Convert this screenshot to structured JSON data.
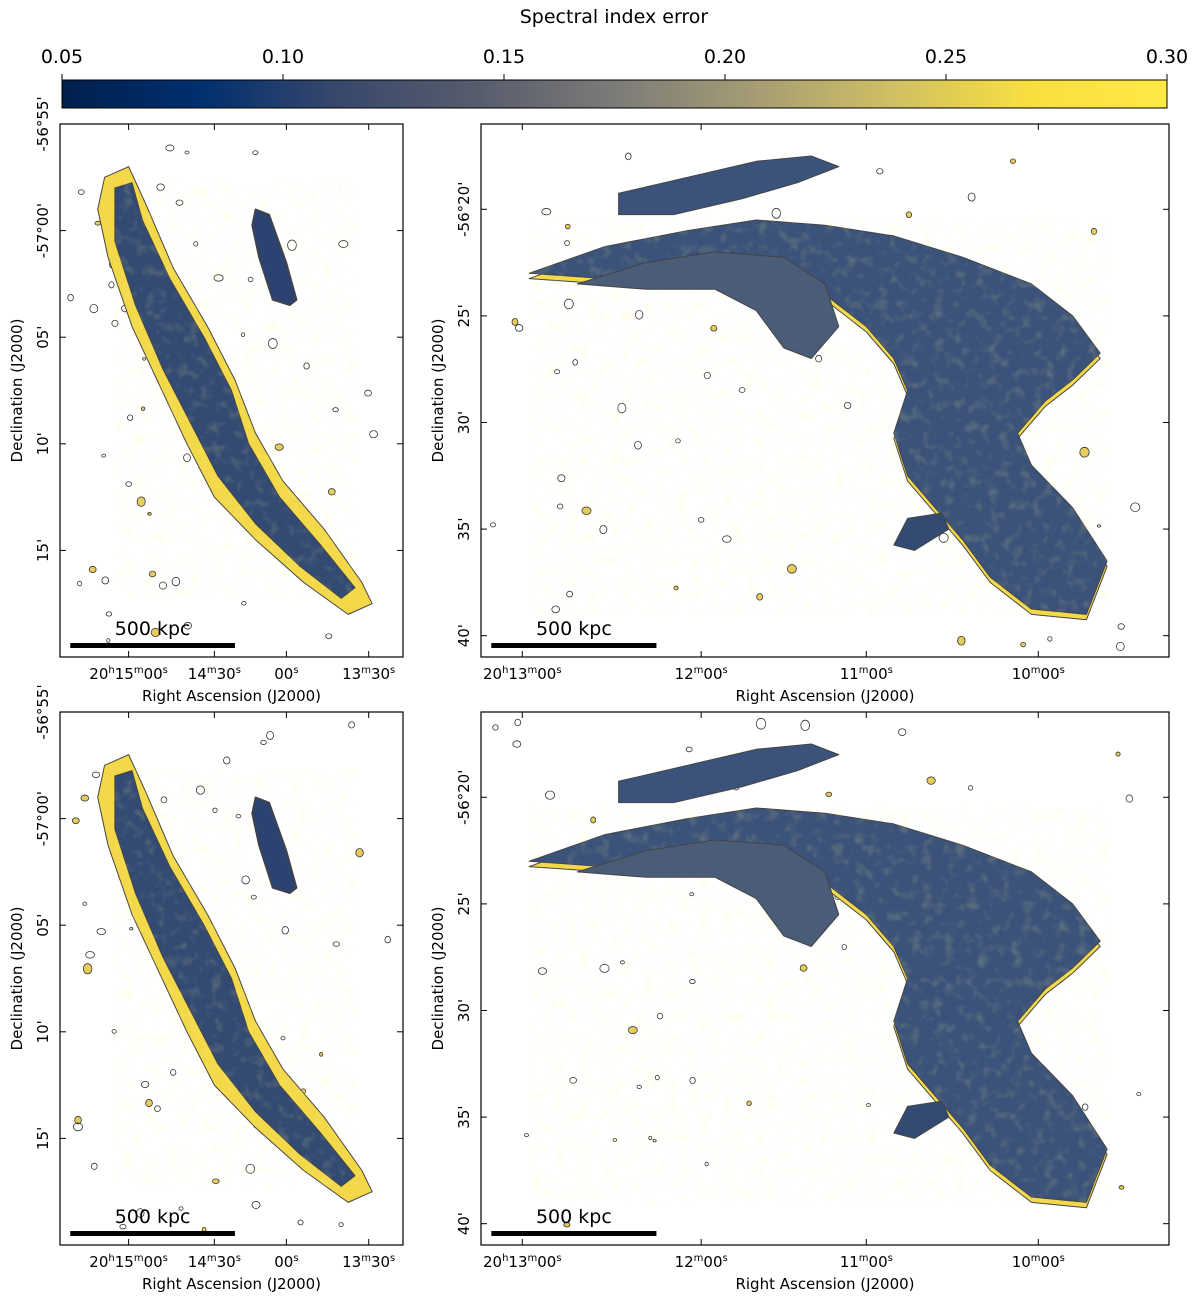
{
  "colorbar": {
    "label": "Spectral index error",
    "ticks": [
      "0.05",
      "0.10",
      "0.15",
      "0.20",
      "0.25",
      "0.30"
    ],
    "range": [
      0.05,
      0.3
    ],
    "colormap": "cividis",
    "colors": [
      "#00204c",
      "#002f6f",
      "#38486b",
      "#575c6d",
      "#7c7b78",
      "#a59c74",
      "#cfbf64",
      "#f8df40",
      "#ffe945"
    ]
  },
  "panels": [
    {
      "id": "top-left",
      "ylabel": "Declination (J2000)",
      "xlabel": "Right Ascension (J2000)",
      "yticks": [
        "-56°55'",
        "-57°00'",
        "05'",
        "10'",
        "15'"
      ],
      "xticks": [
        [
          "20",
          "h",
          "15",
          "m",
          "00",
          "s"
        ],
        [
          "14",
          "m",
          "30",
          "s"
        ],
        [
          "00",
          "s"
        ],
        [
          "13",
          "m",
          "30",
          "s"
        ]
      ],
      "scalebar": "500 kpc"
    },
    {
      "id": "top-right",
      "ylabel": "Declination (J2000)",
      "xlabel": "Right Ascension (J2000)",
      "yticks": [
        "-56°20'",
        "25'",
        "30'",
        "35'",
        "40'"
      ],
      "xticks": [
        [
          "20",
          "h",
          "13",
          "m",
          "00",
          "s"
        ],
        [
          "12",
          "m",
          "00",
          "s"
        ],
        [
          "11",
          "m",
          "00",
          "s"
        ],
        [
          "10",
          "m",
          "00",
          "s"
        ]
      ],
      "scalebar": "500 kpc"
    },
    {
      "id": "bottom-left",
      "ylabel": "Declination (J2000)",
      "xlabel": "Right Ascension (J2000)",
      "yticks": [
        "-56°55'",
        "-57°00'",
        "05'",
        "10'",
        "15'"
      ],
      "xticks": [
        [
          "20",
          "h",
          "15",
          "m",
          "00",
          "s"
        ],
        [
          "14",
          "m",
          "30",
          "s"
        ],
        [
          "00",
          "s"
        ],
        [
          "13",
          "m",
          "30",
          "s"
        ]
      ],
      "scalebar": "500 kpc"
    },
    {
      "id": "bottom-right",
      "ylabel": "Declination (J2000)",
      "xlabel": "Right Ascension (J2000)",
      "yticks": [
        "-56°20'",
        "25'",
        "30'",
        "35'",
        "40'"
      ],
      "xticks": [
        [
          "20",
          "h",
          "13",
          "m",
          "00",
          "s"
        ],
        [
          "12",
          "m",
          "00",
          "s"
        ],
        [
          "11",
          "m",
          "00",
          "s"
        ],
        [
          "10",
          "m",
          "00",
          "s"
        ]
      ],
      "scalebar": "500 kpc"
    }
  ]
}
